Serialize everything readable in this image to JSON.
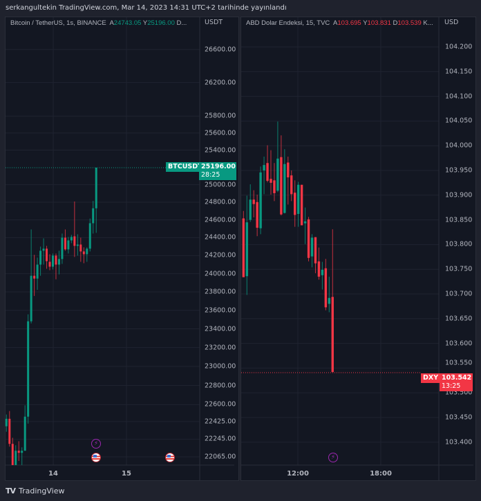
{
  "header": {
    "published_line": "serkangultekin TradingView.com, Mar 14, 2023 14:31 UTC+2 tarihinde yayınlandı"
  },
  "colors": {
    "up": "#089981",
    "down": "#f23645",
    "background": "#131722",
    "event_purple": "#9c27b0"
  },
  "left_chart": {
    "legend": {
      "symbol": "Bitcoin / TetherUS, 1s, BINANCE",
      "a_label": "A",
      "a_value": "24743.05",
      "y_label": "Y",
      "y_value": "25196.00",
      "d_label": "D..."
    },
    "currency": "USDT",
    "scale": "log",
    "price_ticks": [
      "26600.00",
      "26200.00",
      "25800.00",
      "25600.00",
      "25400.00",
      "25000.00",
      "24800.00",
      "24600.00",
      "24400.00",
      "24200.00",
      "24000.00",
      "23800.00",
      "23600.00",
      "23400.00",
      "23200.00",
      "23000.00",
      "22800.00",
      "22600.00",
      "22425.00",
      "22245.00",
      "22065.00"
    ],
    "time_ticks": [
      "14",
      "15"
    ],
    "last_price": {
      "symbol": "BTCUSDT",
      "price": "25196.00",
      "countdown": "28:25"
    },
    "events": [
      "lightning-icon",
      "us-flag-icon",
      "us-flag-icon"
    ],
    "candles": [
      [
        22377,
        22498,
        22321,
        22454
      ],
      [
        22454,
        22534,
        22169,
        22197
      ],
      [
        22197,
        22259,
        21982,
        21982
      ],
      [
        21982,
        22183,
        21982,
        22127
      ],
      [
        22127,
        22224,
        22023,
        22106
      ],
      [
        22106,
        22162,
        21982,
        22127
      ],
      [
        22127,
        22593,
        22127,
        22476
      ],
      [
        22476,
        23556,
        22404,
        23481
      ],
      [
        23481,
        24492,
        23459,
        23977
      ],
      [
        23977,
        24208,
        23756,
        23946
      ],
      [
        23946,
        24177,
        23823,
        24100
      ],
      [
        24100,
        24300,
        23977,
        24254
      ],
      [
        24254,
        24392,
        24100,
        24277
      ],
      [
        24277,
        24308,
        24054,
        24138
      ],
      [
        24131,
        24215,
        24038,
        24077
      ],
      [
        24077,
        24223,
        24046,
        24200
      ],
      [
        24200,
        24223,
        23938,
        24100
      ],
      [
        24100,
        24254,
        23992,
        24162
      ],
      [
        24162,
        24446,
        24108,
        24400
      ],
      [
        24400,
        24492,
        24254,
        24269
      ],
      [
        24269,
        24408,
        24223,
        24369
      ],
      [
        24369,
        24431,
        24338,
        24408
      ],
      [
        24415,
        24808,
        24185,
        24308
      ],
      [
        24308,
        24438,
        24200,
        24323
      ],
      [
        24323,
        24400,
        24131,
        24246
      ],
      [
        24246,
        24292,
        24115,
        24215
      ],
      [
        24215,
        24292,
        24131,
        24277
      ],
      [
        24277,
        24615,
        24246,
        24562
      ],
      [
        24562,
        24815,
        24446,
        24731
      ],
      [
        24731,
        25196,
        24454,
        25196
      ]
    ]
  },
  "right_chart": {
    "legend": {
      "symbol": "ABD Dolar Endeksi, 15, TVC",
      "a_label": "A",
      "a_value": "103.695",
      "y_label": "Y",
      "y_value": "103.831",
      "d_label": "D",
      "d_value": "103.539",
      "k_label": "K..."
    },
    "currency": "USD",
    "scale": "linear",
    "price_ticks": [
      "104.200",
      "104.150",
      "104.100",
      "104.050",
      "104.000",
      "103.950",
      "103.900",
      "103.850",
      "103.800",
      "103.750",
      "103.700",
      "103.650",
      "103.600",
      "103.550",
      "103.500",
      "103.450",
      "103.400"
    ],
    "time_ticks": [
      "12:00",
      "18:00"
    ],
    "last_price": {
      "symbol": "DXY",
      "price": "103.542",
      "countdown": "13:25"
    },
    "events": [
      "lightning-icon"
    ],
    "candles": [
      [
        103.853,
        103.868,
        103.734,
        103.734
      ],
      [
        103.736,
        103.899,
        103.698,
        103.845
      ],
      [
        103.85,
        103.922,
        103.846,
        103.891
      ],
      [
        103.891,
        103.91,
        103.855,
        103.882
      ],
      [
        103.886,
        103.901,
        103.817,
        103.834
      ],
      [
        103.833,
        103.958,
        103.821,
        103.946
      ],
      [
        103.95,
        103.978,
        103.902,
        103.961
      ],
      [
        103.965,
        104.001,
        103.926,
        103.929
      ],
      [
        103.933,
        103.991,
        103.901,
        103.925
      ],
      [
        103.93,
        103.965,
        103.888,
        103.904
      ],
      [
        103.909,
        104.049,
        103.906,
        103.974
      ],
      [
        103.977,
        104.021,
        103.859,
        103.861
      ],
      [
        103.864,
        103.993,
        103.863,
        103.963
      ],
      [
        103.966,
        103.978,
        103.881,
        103.936
      ],
      [
        103.94,
        103.95,
        103.888,
        103.902
      ],
      [
        103.905,
        103.93,
        103.836,
        103.86
      ],
      [
        103.862,
        103.927,
        103.836,
        103.921
      ],
      [
        103.921,
        103.921,
        103.839,
        103.839
      ],
      [
        103.843,
        103.875,
        103.801,
        103.847
      ],
      [
        103.851,
        103.856,
        103.766,
        103.773
      ],
      [
        103.776,
        103.821,
        103.754,
        103.814
      ],
      [
        103.815,
        103.815,
        103.742,
        103.762
      ],
      [
        103.766,
        103.794,
        103.729,
        103.735
      ],
      [
        103.738,
        103.765,
        103.709,
        103.749
      ],
      [
        103.752,
        103.771,
        103.667,
        103.673
      ],
      [
        103.68,
        103.735,
        103.663,
        103.692
      ],
      [
        103.694,
        103.831,
        103.542,
        103.542
      ]
    ]
  },
  "footer": {
    "brand": "TradingView"
  }
}
